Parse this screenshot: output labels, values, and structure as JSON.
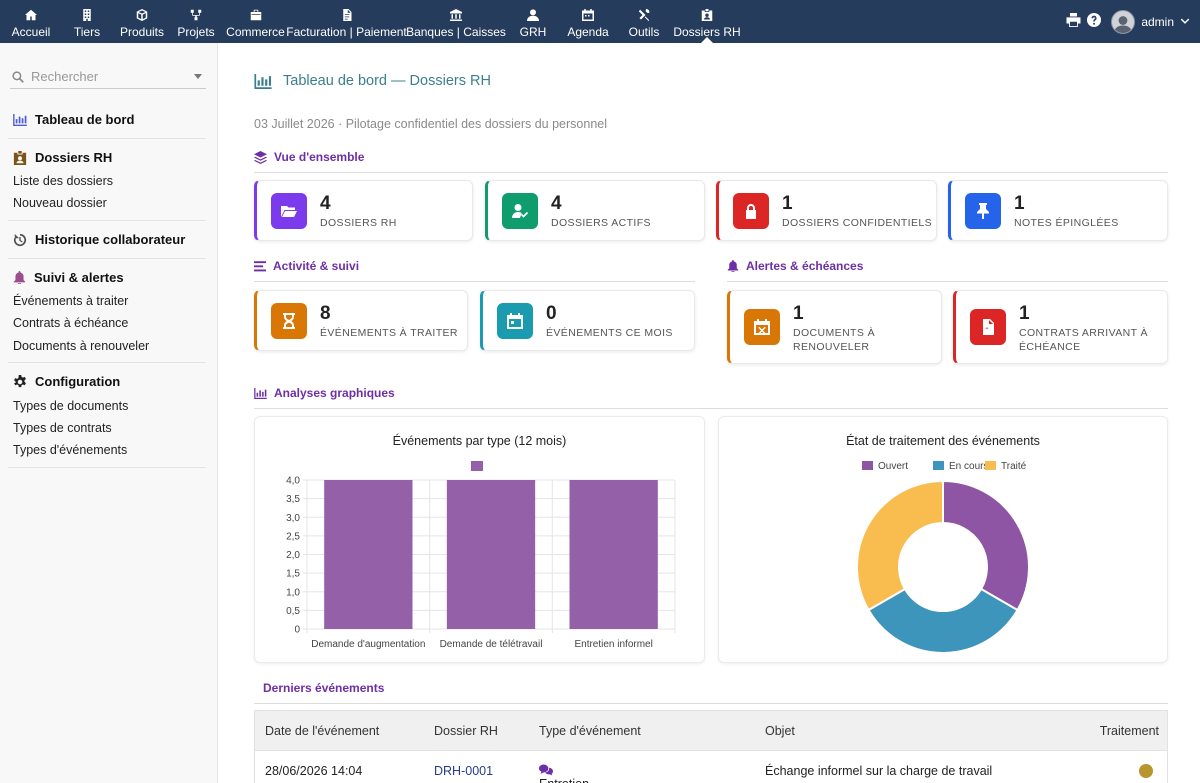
{
  "topnav": {
    "items": [
      {
        "label": "Accueil",
        "icon": "home-icon"
      },
      {
        "label": "Tiers",
        "icon": "building-icon"
      },
      {
        "label": "Produits",
        "icon": "cube-icon"
      },
      {
        "label": "Projets",
        "icon": "project-icon"
      },
      {
        "label": "Commerce",
        "icon": "briefcase-icon"
      },
      {
        "label": "Facturation | Paiement",
        "icon": "invoice-icon"
      },
      {
        "label": "Banques | Caisses",
        "icon": "bank-icon"
      },
      {
        "label": "GRH",
        "icon": "user-icon"
      },
      {
        "label": "Agenda",
        "icon": "calendar-icon"
      },
      {
        "label": "Outils",
        "icon": "tools-icon"
      },
      {
        "label": "Dossiers RH",
        "icon": "id-badge-icon",
        "active": true
      }
    ],
    "user": "admin"
  },
  "sidebar": {
    "search_placeholder": "Rechercher",
    "dashboard": "Tableau de bord",
    "dossiers": {
      "title": "Dossiers RH",
      "links": [
        "Liste des dossiers",
        "Nouveau dossier"
      ]
    },
    "historique": "Historique collaborateur",
    "suivi": {
      "title": "Suivi & alertes",
      "links": [
        "Événements à traiter",
        "Contrats à échéance",
        "Documents à renouveler"
      ]
    },
    "config": {
      "title": "Configuration",
      "links": [
        "Types de documents",
        "Types de contrats",
        "Types d'événements"
      ]
    }
  },
  "page": {
    "title": "Tableau de bord — Dossiers RH",
    "subtitle": "03 Juillet 2026 · Pilotage confidentiel des dossiers du personnel"
  },
  "overview": {
    "title": "Vue d'ensemble",
    "cards": [
      {
        "value": "4",
        "label": "DOSSIERS RH",
        "color": "#7c3aed",
        "icon": "folder-open-icon"
      },
      {
        "value": "4",
        "label": "DOSSIERS ACTIFS",
        "color": "#0f9d6e",
        "icon": "user-check-icon"
      },
      {
        "value": "1",
        "label": "DOSSIERS CONFIDENTIELS",
        "color": "#dc2626",
        "icon": "lock-icon"
      },
      {
        "value": "1",
        "label": "NOTES ÉPINGLÉES",
        "color": "#2563eb",
        "icon": "pin-icon"
      }
    ]
  },
  "activity": {
    "title": "Activité & suivi",
    "cards": [
      {
        "value": "8",
        "label": "ÉVÉNEMENTS À TRAITER",
        "color": "#d97706",
        "icon": "hourglass-icon"
      },
      {
        "value": "0",
        "label": "ÉVÉNEMENTS CE MOIS",
        "color": "#1a9bb0",
        "icon": "calendar-icon"
      }
    ]
  },
  "alerts": {
    "title": "Alertes & échéances",
    "cards": [
      {
        "value": "1",
        "label_l1": "DOCUMENTS À",
        "label_l2": "RENOUVELER",
        "color": "#d97706",
        "icon": "calendar-x-icon"
      },
      {
        "value": "1",
        "label_l1": "CONTRATS ARRIVANT À",
        "label_l2": "ÉCHÉANCE",
        "color": "#dc2626",
        "icon": "file-pdf-icon"
      }
    ]
  },
  "charts": {
    "title": "Analyses graphiques"
  },
  "chart_data": [
    {
      "type": "bar",
      "title": "Événements par type (12 mois)",
      "categories": [
        "Demande d'augmentation",
        "Demande de télétravail",
        "Entretien informel"
      ],
      "values": [
        4,
        4,
        4
      ],
      "ylim": [
        0,
        4
      ],
      "yticks": [
        "0",
        "0,5",
        "1,0",
        "1,5",
        "2,0",
        "2,5",
        "3,0",
        "3,5",
        "4,0"
      ],
      "color": "#9461a9",
      "grid": true
    },
    {
      "type": "pie",
      "title": "État de traitement des événements",
      "labels": [
        "Ouvert",
        "En cours",
        "Traité"
      ],
      "values": [
        3,
        3,
        3
      ],
      "colors": [
        "#8e55a4",
        "#3d95bb",
        "#f9bc4f"
      ],
      "legend": "top"
    }
  ],
  "recent": {
    "title": "Derniers événements",
    "headers": [
      "Date de l'événement",
      "Dossier RH",
      "Type d'événement",
      "Objet",
      "Traitement"
    ],
    "rows": [
      {
        "date": "28/06/2026 14:04",
        "dossier": "DRH-0001",
        "type": "Entretien informel",
        "objet": "Échange informel sur la charge de travail",
        "status_color": "#b8962e"
      }
    ]
  }
}
